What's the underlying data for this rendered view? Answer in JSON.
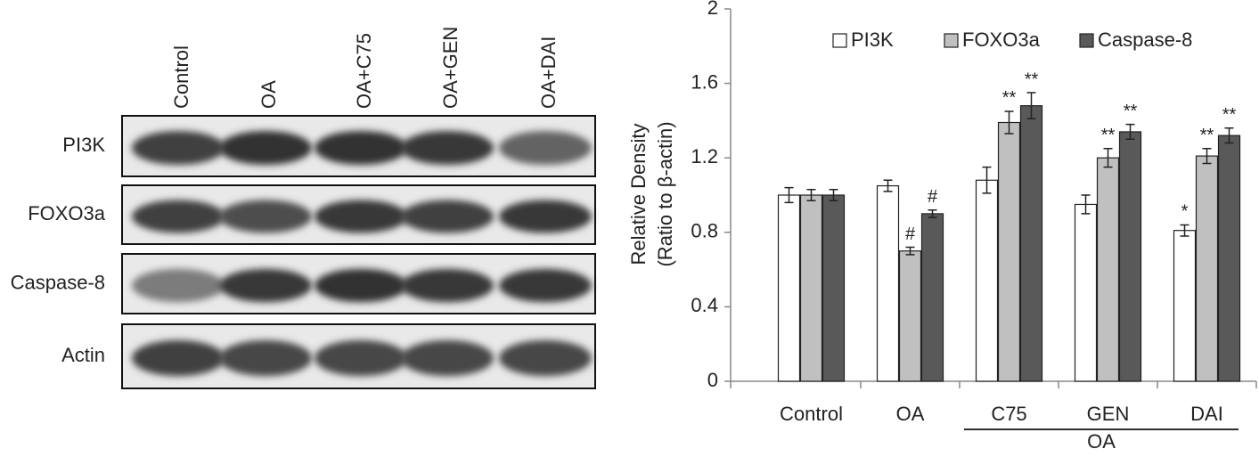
{
  "blot": {
    "lanes": [
      "Control",
      "OA",
      "OA+C75",
      "OA+GEN",
      "OA+DAI"
    ],
    "rows": [
      "PI3K",
      "FOXO3a",
      "Caspase-8",
      "Actin"
    ]
  },
  "chart_data": {
    "type": "bar",
    "ylabel": [
      "Relative Density",
      "(Ratio to β-actin)"
    ],
    "categories": [
      "Control",
      "OA",
      "C75",
      "GEN",
      "DAI"
    ],
    "group_label": "OA",
    "series": [
      {
        "name": "PI3K",
        "color": "#ffffff",
        "values": [
          1.0,
          1.05,
          1.08,
          0.95,
          0.81
        ],
        "errors": [
          0.04,
          0.03,
          0.07,
          0.05,
          0.03
        ],
        "markers": [
          null,
          null,
          null,
          null,
          "*"
        ]
      },
      {
        "name": "FOXO3a",
        "color": "#c0c0c0",
        "values": [
          1.0,
          0.7,
          1.39,
          1.2,
          1.21
        ],
        "errors": [
          0.03,
          0.02,
          0.06,
          0.05,
          0.04
        ],
        "markers": [
          null,
          "#",
          "**",
          "**",
          "**"
        ]
      },
      {
        "name": "Caspase-8",
        "color": "#595959",
        "values": [
          1.0,
          0.9,
          1.48,
          1.34,
          1.32
        ],
        "errors": [
          0.03,
          0.02,
          0.07,
          0.04,
          0.04
        ],
        "markers": [
          null,
          "#",
          "**",
          "**",
          "**"
        ]
      }
    ],
    "ylim": [
      0,
      2
    ],
    "yticks": [
      0,
      0.4,
      0.8,
      1.2,
      1.6,
      2
    ],
    "grid": false
  }
}
